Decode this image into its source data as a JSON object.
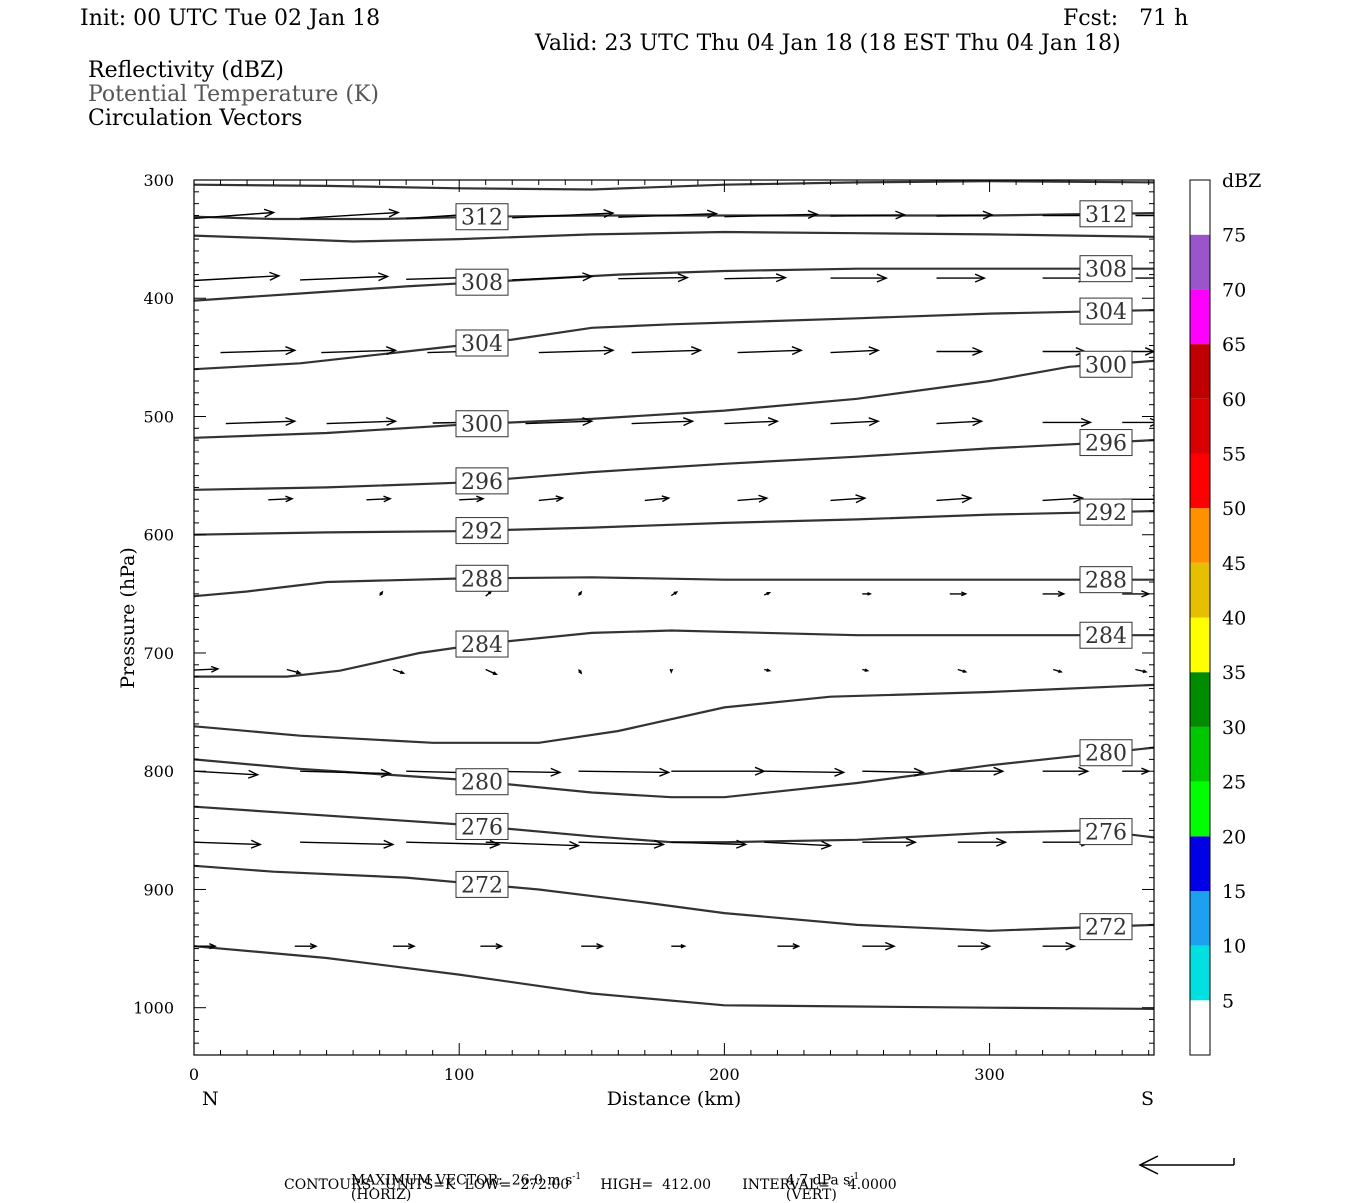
{
  "header": {
    "init": "Init: 00 UTC Tue 02 Jan 18",
    "fcst": "Fcst:   71 h",
    "valid": "Valid: 23 UTC Thu 04 Jan 18 (18 EST Thu 04 Jan 18)"
  },
  "fields": [
    {
      "label": "Reflectivity (dBZ)",
      "color": "#000000"
    },
    {
      "label": "Potential Temperature (K)",
      "color": "#555555"
    },
    {
      "label": "Circulation Vectors",
      "color": "#000000"
    }
  ],
  "footer": {
    "max_vector": "MAXIMUM VECTOR:  26.0 m s",
    "horiz": "(HORIZ)",
    "vert_val": "4.7 dPa s",
    "vert": "(VERT)",
    "exp": "-1",
    "contours": "CONTOURS:  UNITS=K  LOW=  272.00       HIGH=  412.00       INTERVAL=    4.0000"
  },
  "chart_data": {
    "type": "line",
    "title": "",
    "xlabel": "Distance (km)",
    "ylabel": "Pressure (hPa)",
    "xlim": [
      0,
      362
    ],
    "ylim": [
      1040,
      300
    ],
    "x_ticks": [
      0,
      100,
      200,
      300
    ],
    "y_ticks": [
      300,
      400,
      500,
      600,
      700,
      800,
      900,
      1000
    ],
    "x_end_labels": {
      "left": "N",
      "right": "S"
    },
    "colorbar": {
      "title": "dBZ",
      "labels": [
        "5",
        "10",
        "15",
        "20",
        "25",
        "30",
        "35",
        "40",
        "45",
        "50",
        "55",
        "60",
        "65",
        "70",
        "75"
      ],
      "colors": [
        "#ffffff",
        "#00e0e0",
        "#1ea0f0",
        "#0000e6",
        "#00ff00",
        "#00c800",
        "#008c00",
        "#ffff00",
        "#e6c000",
        "#ff9000",
        "#ff0000",
        "#d80000",
        "#c00000",
        "#ff00ff",
        "#9955c9",
        "#ffffff"
      ]
    },
    "isentropes": [
      {
        "points": [
          [
            0,
            304
          ],
          [
            50,
            305
          ],
          [
            100,
            307
          ],
          [
            150,
            308
          ],
          [
            200,
            304
          ],
          [
            250,
            302
          ],
          [
            300,
            301
          ],
          [
            362,
            302
          ]
        ]
      },
      {
        "label": "312",
        "points": [
          [
            0,
            331
          ],
          [
            30,
            333
          ],
          [
            70,
            333
          ],
          [
            110,
            331
          ],
          [
            150,
            330
          ],
          [
            200,
            330
          ],
          [
            250,
            330
          ],
          [
            300,
            330
          ],
          [
            362,
            328
          ]
        ]
      },
      {
        "points": [
          [
            0,
            347
          ],
          [
            25,
            349
          ],
          [
            60,
            352
          ],
          [
            100,
            350
          ],
          [
            150,
            346
          ],
          [
            200,
            344
          ],
          [
            250,
            345
          ],
          [
            300,
            346
          ],
          [
            362,
            348
          ]
        ]
      },
      {
        "label": "308",
        "points": [
          [
            0,
            402
          ],
          [
            40,
            396
          ],
          [
            80,
            390
          ],
          [
            120,
            385
          ],
          [
            160,
            380
          ],
          [
            200,
            377
          ],
          [
            250,
            375
          ],
          [
            300,
            375
          ],
          [
            362,
            375
          ]
        ]
      },
      {
        "label": "304",
        "points": [
          [
            0,
            460
          ],
          [
            40,
            455
          ],
          [
            80,
            445
          ],
          [
            120,
            435
          ],
          [
            150,
            425
          ],
          [
            180,
            422
          ],
          [
            250,
            417
          ],
          [
            300,
            413
          ],
          [
            362,
            410
          ]
        ]
      },
      {
        "label": "300",
        "points": [
          [
            0,
            518
          ],
          [
            50,
            514
          ],
          [
            100,
            507
          ],
          [
            150,
            502
          ],
          [
            200,
            495
          ],
          [
            250,
            485
          ],
          [
            300,
            470
          ],
          [
            330,
            458
          ],
          [
            362,
            453
          ]
        ]
      },
      {
        "label": "296",
        "points": [
          [
            0,
            562
          ],
          [
            50,
            560
          ],
          [
            100,
            556
          ],
          [
            150,
            547
          ],
          [
            200,
            540
          ],
          [
            250,
            534
          ],
          [
            300,
            527
          ],
          [
            362,
            520
          ]
        ]
      },
      {
        "label": "292",
        "points": [
          [
            0,
            600
          ],
          [
            50,
            598
          ],
          [
            100,
            597
          ],
          [
            150,
            594
          ],
          [
            200,
            590
          ],
          [
            250,
            587
          ],
          [
            300,
            583
          ],
          [
            362,
            580
          ]
        ]
      },
      {
        "label": "288",
        "points": [
          [
            0,
            652
          ],
          [
            20,
            648
          ],
          [
            50,
            640
          ],
          [
            100,
            637
          ],
          [
            150,
            636
          ],
          [
            200,
            638
          ],
          [
            250,
            638
          ],
          [
            300,
            638
          ],
          [
            362,
            638
          ]
        ]
      },
      {
        "label": "284",
        "points": [
          [
            0,
            720
          ],
          [
            35,
            720
          ],
          [
            55,
            715
          ],
          [
            85,
            700
          ],
          [
            110,
            692
          ],
          [
            150,
            683
          ],
          [
            180,
            681
          ],
          [
            250,
            685
          ],
          [
            300,
            685
          ],
          [
            362,
            685
          ]
        ]
      },
      {
        "points": [
          [
            0,
            762
          ],
          [
            40,
            770
          ],
          [
            90,
            776
          ],
          [
            130,
            776
          ],
          [
            160,
            766
          ],
          [
            200,
            746
          ],
          [
            240,
            737
          ],
          [
            300,
            733
          ],
          [
            362,
            727
          ]
        ]
      },
      {
        "label": "280",
        "points": [
          [
            0,
            790
          ],
          [
            40,
            798
          ],
          [
            100,
            807
          ],
          [
            150,
            818
          ],
          [
            180,
            822
          ],
          [
            200,
            822
          ],
          [
            250,
            810
          ],
          [
            300,
            795
          ],
          [
            362,
            780
          ]
        ]
      },
      {
        "label": "276",
        "points": [
          [
            0,
            830
          ],
          [
            40,
            836
          ],
          [
            100,
            845
          ],
          [
            150,
            855
          ],
          [
            180,
            860
          ],
          [
            200,
            860
          ],
          [
            250,
            858
          ],
          [
            300,
            852
          ],
          [
            340,
            850
          ],
          [
            362,
            856
          ]
        ]
      },
      {
        "label": "272",
        "points": [
          [
            0,
            880
          ],
          [
            30,
            885
          ],
          [
            80,
            890
          ],
          [
            130,
            900
          ],
          [
            170,
            911
          ],
          [
            200,
            920
          ],
          [
            250,
            930
          ],
          [
            300,
            935
          ],
          [
            362,
            930
          ]
        ]
      },
      {
        "points": [
          [
            0,
            948
          ],
          [
            50,
            958
          ],
          [
            100,
            972
          ],
          [
            150,
            988
          ],
          [
            200,
            998
          ],
          [
            250,
            999
          ],
          [
            300,
            1000
          ],
          [
            362,
            1001
          ]
        ]
      }
    ],
    "vectors_note": "circulation vectors: [x_km, pressure_hPa, dx_km, dp_hPa]",
    "vectors": [
      [
        0,
        330,
        30,
        5
      ],
      [
        40,
        330,
        37,
        5
      ],
      [
        80,
        330,
        35,
        5
      ],
      [
        120,
        330,
        38,
        4
      ],
      [
        160,
        330,
        37,
        3
      ],
      [
        200,
        330,
        35,
        2
      ],
      [
        240,
        330,
        28,
        1
      ],
      [
        280,
        330,
        21,
        1
      ],
      [
        320,
        330,
        18,
        0
      ],
      [
        355,
        330,
        15,
        0
      ],
      [
        0,
        383,
        32,
        4
      ],
      [
        40,
        383,
        33,
        3
      ],
      [
        80,
        383,
        30,
        2
      ],
      [
        120,
        383,
        30,
        3
      ],
      [
        160,
        383,
        26,
        1
      ],
      [
        200,
        383,
        23,
        1
      ],
      [
        240,
        383,
        21,
        0
      ],
      [
        280,
        383,
        18,
        0
      ],
      [
        320,
        383,
        17,
        0
      ],
      [
        355,
        383,
        12,
        0
      ],
      [
        10,
        445,
        28,
        2
      ],
      [
        48,
        445,
        28,
        2
      ],
      [
        88,
        445,
        30,
        2
      ],
      [
        130,
        445,
        28,
        2
      ],
      [
        165,
        445,
        26,
        2
      ],
      [
        205,
        445,
        24,
        2
      ],
      [
        240,
        445,
        18,
        2
      ],
      [
        280,
        445,
        17,
        0
      ],
      [
        320,
        445,
        16,
        0
      ],
      [
        350,
        445,
        12,
        0
      ],
      [
        12,
        505,
        26,
        2
      ],
      [
        50,
        505,
        26,
        2
      ],
      [
        90,
        505,
        25,
        1
      ],
      [
        125,
        505,
        25,
        2
      ],
      [
        165,
        505,
        23,
        2
      ],
      [
        200,
        505,
        20,
        2
      ],
      [
        240,
        505,
        18,
        2
      ],
      [
        280,
        505,
        17,
        2
      ],
      [
        320,
        505,
        18,
        0
      ],
      [
        350,
        505,
        14,
        0
      ],
      [
        28,
        570,
        9,
        1
      ],
      [
        65,
        570,
        9,
        1
      ],
      [
        100,
        570,
        9,
        1
      ],
      [
        130,
        570,
        9,
        2
      ],
      [
        170,
        570,
        9,
        2
      ],
      [
        205,
        570,
        11,
        2
      ],
      [
        240,
        570,
        13,
        2
      ],
      [
        280,
        570,
        13,
        2
      ],
      [
        320,
        570,
        15,
        2
      ],
      [
        350,
        570,
        15,
        0
      ],
      [
        70,
        650,
        1,
        3
      ],
      [
        110,
        650,
        2,
        4
      ],
      [
        145,
        650,
        1,
        3
      ],
      [
        180,
        650,
        2,
        3
      ],
      [
        215,
        650,
        2,
        2
      ],
      [
        252,
        650,
        3,
        0
      ],
      [
        285,
        650,
        6,
        0
      ],
      [
        320,
        650,
        8,
        0
      ],
      [
        350,
        650,
        10,
        0
      ],
      [
        0,
        714,
        9,
        1
      ],
      [
        35,
        714,
        5,
        3
      ],
      [
        75,
        714,
        4,
        3
      ],
      [
        110,
        714,
        4,
        4
      ],
      [
        145,
        714,
        1,
        3
      ],
      [
        180,
        714,
        0,
        2
      ],
      [
        215,
        714,
        2,
        1
      ],
      [
        252,
        714,
        2,
        1
      ],
      [
        288,
        714,
        3,
        2
      ],
      [
        324,
        714,
        3,
        2
      ],
      [
        355,
        714,
        4,
        2
      ],
      [
        0,
        800,
        24,
        3
      ],
      [
        40,
        800,
        34,
        2
      ],
      [
        80,
        800,
        35,
        2
      ],
      [
        110,
        800,
        28,
        1
      ],
      [
        145,
        800,
        34,
        1
      ],
      [
        180,
        800,
        35,
        0
      ],
      [
        215,
        800,
        30,
        1
      ],
      [
        252,
        800,
        23,
        1
      ],
      [
        285,
        800,
        20,
        0
      ],
      [
        320,
        800,
        17,
        0
      ],
      [
        350,
        800,
        10,
        0
      ],
      [
        0,
        860,
        25,
        2
      ],
      [
        40,
        860,
        35,
        2
      ],
      [
        80,
        860,
        35,
        2
      ],
      [
        110,
        860,
        35,
        3
      ],
      [
        145,
        860,
        32,
        2
      ],
      [
        180,
        860,
        28,
        2
      ],
      [
        215,
        860,
        25,
        3
      ],
      [
        252,
        860,
        20,
        0
      ],
      [
        288,
        860,
        18,
        0
      ],
      [
        320,
        860,
        18,
        0
      ],
      [
        0,
        948,
        8,
        0
      ],
      [
        38,
        948,
        8,
        0
      ],
      [
        75,
        948,
        8,
        0
      ],
      [
        108,
        948,
        8,
        0
      ],
      [
        146,
        948,
        8,
        0
      ],
      [
        180,
        948,
        5,
        0
      ],
      [
        220,
        948,
        8,
        0
      ],
      [
        252,
        948,
        12,
        0
      ],
      [
        288,
        948,
        12,
        0
      ],
      [
        320,
        948,
        12,
        0
      ]
    ]
  }
}
